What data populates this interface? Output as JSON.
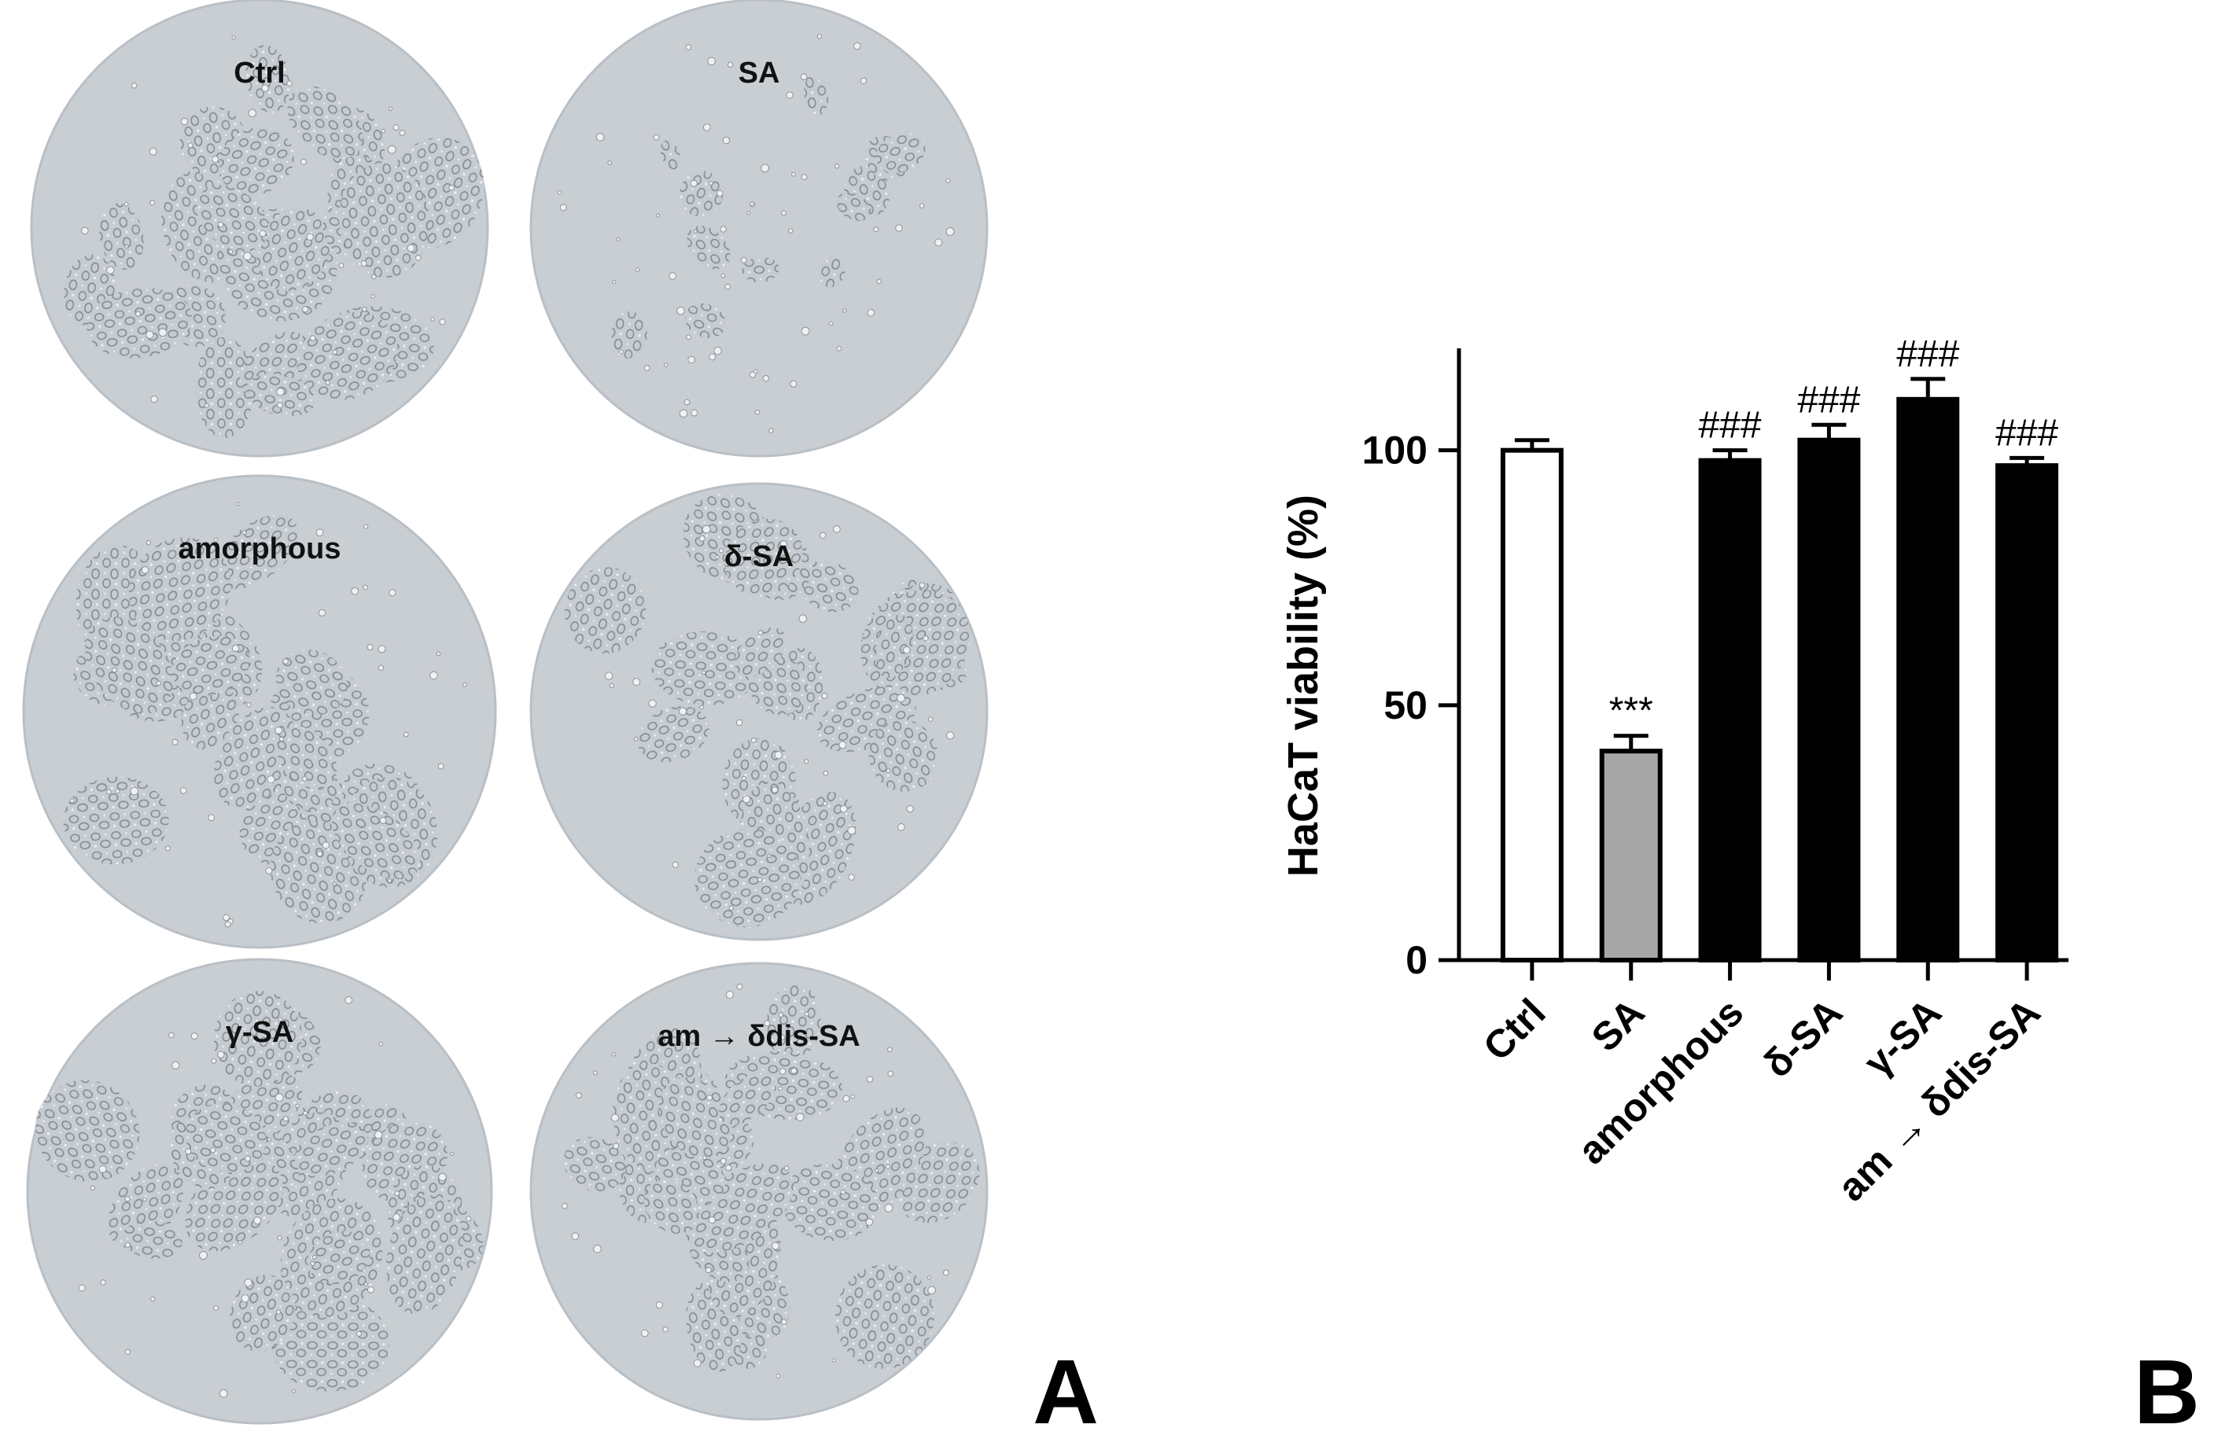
{
  "panel_a": {
    "letter": "A",
    "dishes": [
      {
        "label": "Ctrl",
        "density": 0.85
      },
      {
        "label": "SA",
        "density": 0.35
      },
      {
        "label": "amorphous",
        "density": 0.85
      },
      {
        "label": "δ-SA",
        "density": 0.9
      },
      {
        "label": "γ-SA",
        "density": 0.85
      },
      {
        "label": "am → δdis-SA",
        "density": 0.85
      }
    ]
  },
  "panel_b": {
    "letter": "B"
  },
  "chart_data": {
    "type": "bar",
    "categories": [
      "Ctrl",
      "SA",
      "amorphous",
      "δ-SA",
      "γ-SA",
      "am → δdis-SA"
    ],
    "values": [
      100,
      41,
      98,
      102,
      110,
      97
    ],
    "errors": [
      2,
      3,
      2,
      3,
      4,
      1.5
    ],
    "bar_colors": [
      "#ffffff",
      "#a6a6a6",
      "#000000",
      "#000000",
      "#000000",
      "#000000"
    ],
    "significance": [
      "",
      "***",
      "###",
      "###",
      "###",
      "###"
    ],
    "ylabel": "HaCaT viability (%)",
    "xlabel": "",
    "yticks": [
      0,
      50,
      100
    ],
    "ylim": [
      0,
      120
    ],
    "grid": false
  }
}
